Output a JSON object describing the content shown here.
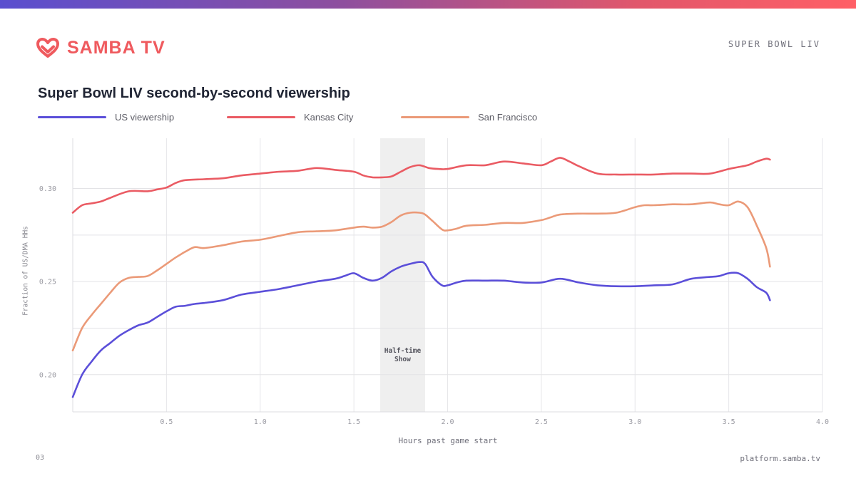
{
  "brand": {
    "name": "SAMBA TV",
    "color": "#ef5a5e"
  },
  "header": {
    "tag": "SUPER BOWL LIV"
  },
  "footer": {
    "page": "03",
    "url": "platform.samba.tv"
  },
  "chart_data": {
    "type": "line",
    "title": "Super Bowl LIV second-by-second viewership",
    "xlabel": "Hours past game start",
    "ylabel": "Fraction of US/DMA HHs",
    "xlim": [
      0,
      4.0
    ],
    "ylim": [
      0.18,
      0.327
    ],
    "x_ticks": [
      0.5,
      1.0,
      1.5,
      2.0,
      2.5,
      3.0,
      3.5,
      4.0
    ],
    "x_tick_labels": [
      "0.5",
      "1.0",
      "1.5",
      "2.0",
      "2.5",
      "3.0",
      "3.5",
      "4.0"
    ],
    "y_ticks": [
      0.2,
      0.25,
      0.3
    ],
    "y_tick_labels": [
      "0.20",
      "0.25",
      "0.30"
    ],
    "grid": true,
    "legend_position": "top-left",
    "annotations": [
      {
        "label": "Half-time Show",
        "lines": [
          "Half-time",
          "Show"
        ],
        "x_start": 1.64,
        "x_end": 1.88
      }
    ],
    "series": [
      {
        "name": "US viewership",
        "color": "#5b4fd9",
        "x": [
          0,
          0.05,
          0.1,
          0.15,
          0.2,
          0.25,
          0.3,
          0.35,
          0.4,
          0.45,
          0.5,
          0.55,
          0.6,
          0.65,
          0.7,
          0.8,
          0.9,
          1.0,
          1.1,
          1.2,
          1.3,
          1.4,
          1.45,
          1.5,
          1.55,
          1.6,
          1.65,
          1.7,
          1.75,
          1.8,
          1.85,
          1.88,
          1.92,
          1.97,
          2.0,
          2.05,
          2.1,
          2.2,
          2.3,
          2.4,
          2.5,
          2.6,
          2.7,
          2.8,
          2.9,
          3.0,
          3.1,
          3.2,
          3.3,
          3.4,
          3.45,
          3.5,
          3.55,
          3.6,
          3.65,
          3.7,
          3.72
        ],
        "y": [
          0.188,
          0.2,
          0.207,
          0.213,
          0.217,
          0.221,
          0.224,
          0.2265,
          0.228,
          0.231,
          0.234,
          0.2365,
          0.237,
          0.238,
          0.2385,
          0.24,
          0.243,
          0.2445,
          0.246,
          0.248,
          0.25,
          0.2515,
          0.253,
          0.2545,
          0.252,
          0.2505,
          0.252,
          0.2555,
          0.258,
          0.2595,
          0.2605,
          0.2595,
          0.2525,
          0.248,
          0.248,
          0.2495,
          0.2505,
          0.2505,
          0.2505,
          0.2495,
          0.2495,
          0.2515,
          0.2495,
          0.248,
          0.2475,
          0.2475,
          0.248,
          0.2485,
          0.2515,
          0.2525,
          0.253,
          0.2545,
          0.2545,
          0.2515,
          0.247,
          0.244,
          0.24
        ]
      },
      {
        "name": "Kansas City",
        "color": "#ea5b63",
        "x": [
          0,
          0.05,
          0.1,
          0.15,
          0.2,
          0.3,
          0.4,
          0.45,
          0.5,
          0.55,
          0.6,
          0.7,
          0.8,
          0.9,
          1.0,
          1.1,
          1.2,
          1.3,
          1.4,
          1.5,
          1.55,
          1.6,
          1.65,
          1.7,
          1.75,
          1.8,
          1.85,
          1.9,
          1.95,
          2.0,
          2.1,
          2.2,
          2.3,
          2.4,
          2.5,
          2.55,
          2.6,
          2.65,
          2.7,
          2.8,
          2.9,
          3.0,
          3.1,
          3.2,
          3.3,
          3.4,
          3.5,
          3.55,
          3.6,
          3.65,
          3.7,
          3.72
        ],
        "y": [
          0.287,
          0.291,
          0.292,
          0.293,
          0.295,
          0.2985,
          0.2985,
          0.2995,
          0.3005,
          0.303,
          0.3045,
          0.305,
          0.3055,
          0.307,
          0.308,
          0.309,
          0.3095,
          0.311,
          0.31,
          0.309,
          0.307,
          0.306,
          0.306,
          0.3065,
          0.309,
          0.3115,
          0.3125,
          0.311,
          0.3105,
          0.3105,
          0.3125,
          0.3125,
          0.3145,
          0.3135,
          0.3125,
          0.3145,
          0.3165,
          0.3145,
          0.312,
          0.308,
          0.3075,
          0.3075,
          0.3075,
          0.308,
          0.308,
          0.308,
          0.3105,
          0.3115,
          0.3125,
          0.3145,
          0.316,
          0.3155
        ]
      },
      {
        "name": "San Francisco",
        "color": "#eb9a78",
        "x": [
          0,
          0.05,
          0.1,
          0.15,
          0.2,
          0.25,
          0.3,
          0.35,
          0.4,
          0.45,
          0.5,
          0.55,
          0.6,
          0.65,
          0.7,
          0.8,
          0.9,
          1.0,
          1.1,
          1.2,
          1.3,
          1.4,
          1.5,
          1.55,
          1.6,
          1.65,
          1.7,
          1.75,
          1.8,
          1.85,
          1.88,
          1.92,
          1.97,
          2.0,
          2.05,
          2.1,
          2.2,
          2.3,
          2.4,
          2.5,
          2.55,
          2.6,
          2.7,
          2.8,
          2.9,
          3.0,
          3.05,
          3.1,
          3.2,
          3.3,
          3.4,
          3.45,
          3.5,
          3.55,
          3.6,
          3.65,
          3.7,
          3.72
        ],
        "y": [
          0.213,
          0.225,
          0.232,
          0.238,
          0.244,
          0.2495,
          0.252,
          0.2525,
          0.253,
          0.256,
          0.2595,
          0.263,
          0.266,
          0.2685,
          0.268,
          0.2695,
          0.2715,
          0.2725,
          0.2745,
          0.2765,
          0.277,
          0.2775,
          0.279,
          0.2795,
          0.279,
          0.2795,
          0.282,
          0.2855,
          0.287,
          0.287,
          0.286,
          0.2825,
          0.278,
          0.2775,
          0.2785,
          0.28,
          0.2805,
          0.2815,
          0.2815,
          0.283,
          0.2845,
          0.286,
          0.2865,
          0.2865,
          0.287,
          0.29,
          0.291,
          0.291,
          0.2915,
          0.2915,
          0.2925,
          0.2915,
          0.291,
          0.293,
          0.29,
          0.28,
          0.268,
          0.258
        ]
      }
    ]
  }
}
